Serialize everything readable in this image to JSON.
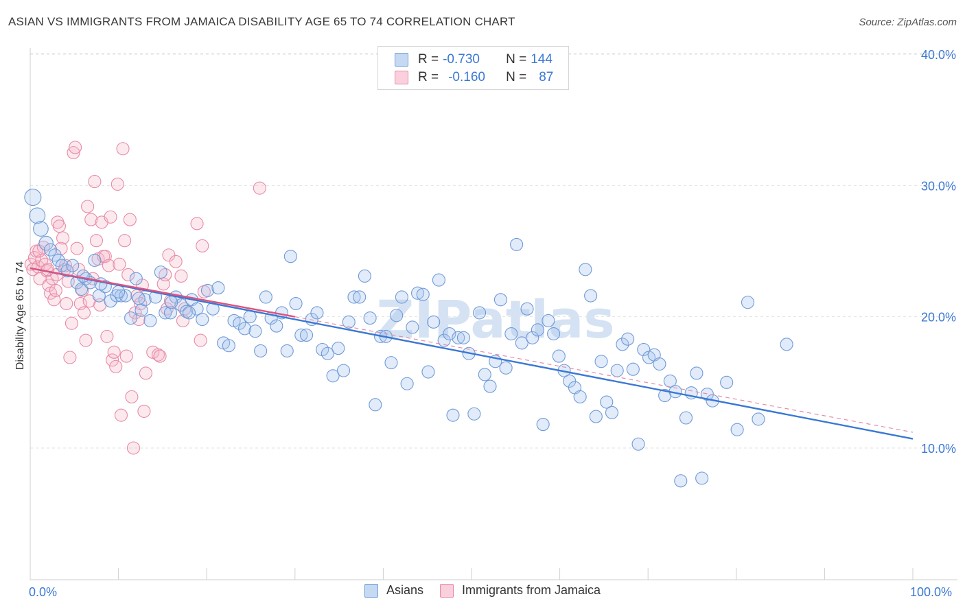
{
  "title": "ASIAN VS IMMIGRANTS FROM JAMAICA DISABILITY AGE 65 TO 74 CORRELATION CHART",
  "source": "Source: ZipAtlas.com",
  "watermark": "ZIPatlas",
  "legend": {
    "rows": [
      {
        "r_label": "R =",
        "r_value": "-0.730",
        "n_label": "N =",
        "n_value": "144",
        "color": "#a9c6ee"
      },
      {
        "r_label": "R =",
        "r_value": "-0.160",
        "n_label": "N =",
        "n_value": "87",
        "color": "#f4b6c8"
      }
    ]
  },
  "bottom_legend": [
    {
      "label": "Asians",
      "color": "#a9c6ee"
    },
    {
      "label": "Immigrants from Jamaica",
      "color": "#f4b6c8"
    }
  ],
  "chart_data": {
    "type": "scatter",
    "ylabel": "Disability Age 65 to 74",
    "xlabel": "",
    "x_tick_labels": [
      "0.0%",
      "100.0%"
    ],
    "y_tick_labels": [
      "10.0%",
      "20.0%",
      "30.0%",
      "40.0%"
    ],
    "y_ticks": [
      10,
      20,
      30,
      40
    ],
    "xlim": [
      0,
      100
    ],
    "ylim": [
      0,
      42
    ],
    "grid": true,
    "colors": {
      "asians": "#3a78d4",
      "jamaica": "#e0517d"
    },
    "series": [
      {
        "name": "Asians",
        "trend": {
          "x": [
            0,
            100
          ],
          "y": [
            23.7,
            10.7
          ]
        },
        "points": [
          [
            0.3,
            29.1
          ],
          [
            0.8,
            27.7
          ],
          [
            1.2,
            26.7
          ],
          [
            1.8,
            25.6
          ],
          [
            2.3,
            25.1
          ],
          [
            2.8,
            24.7
          ],
          [
            3.2,
            24.3
          ],
          [
            3.6,
            23.9
          ],
          [
            4.2,
            23.5
          ],
          [
            4.8,
            23.9
          ],
          [
            5.3,
            22.6
          ],
          [
            5.8,
            22.1
          ],
          [
            6.3,
            22.9
          ],
          [
            6.8,
            22.6
          ],
          [
            7.3,
            24.3
          ],
          [
            7.8,
            21.6
          ],
          [
            8.5,
            22.3
          ],
          [
            9.1,
            21.2
          ],
          [
            9.8,
            21.6
          ],
          [
            10.3,
            21.6
          ],
          [
            10.8,
            21.6
          ],
          [
            11.4,
            19.9
          ],
          [
            12.0,
            22.9
          ],
          [
            12.6,
            20.5
          ],
          [
            13.0,
            21.3
          ],
          [
            13.6,
            19.7
          ],
          [
            14.2,
            21.5
          ],
          [
            14.8,
            23.4
          ],
          [
            15.3,
            20.3
          ],
          [
            15.9,
            20.3
          ],
          [
            16.5,
            21.5
          ],
          [
            17.1,
            20.9
          ],
          [
            17.7,
            20.4
          ],
          [
            18.3,
            21.3
          ],
          [
            18.9,
            20.6
          ],
          [
            19.5,
            19.8
          ],
          [
            20.1,
            22.0
          ],
          [
            20.7,
            20.6
          ],
          [
            21.3,
            22.2
          ],
          [
            21.9,
            18.0
          ],
          [
            22.5,
            17.8
          ],
          [
            23.1,
            19.7
          ],
          [
            23.7,
            19.5
          ],
          [
            24.3,
            19.1
          ],
          [
            24.9,
            20.0
          ],
          [
            25.5,
            18.9
          ],
          [
            26.1,
            17.4
          ],
          [
            26.7,
            21.5
          ],
          [
            27.3,
            19.9
          ],
          [
            27.9,
            19.3
          ],
          [
            28.5,
            20.3
          ],
          [
            29.1,
            17.4
          ],
          [
            29.5,
            24.6
          ],
          [
            30.1,
            21.0
          ],
          [
            30.7,
            18.6
          ],
          [
            31.3,
            18.6
          ],
          [
            31.9,
            19.8
          ],
          [
            32.5,
            20.3
          ],
          [
            33.1,
            17.5
          ],
          [
            33.7,
            17.2
          ],
          [
            34.3,
            15.5
          ],
          [
            34.9,
            17.6
          ],
          [
            35.5,
            15.9
          ],
          [
            36.1,
            19.6
          ],
          [
            36.7,
            21.5
          ],
          [
            37.3,
            21.5
          ],
          [
            37.9,
            23.1
          ],
          [
            38.5,
            19.9
          ],
          [
            39.1,
            13.3
          ],
          [
            39.7,
            18.5
          ],
          [
            40.3,
            18.5
          ],
          [
            40.9,
            16.5
          ],
          [
            41.5,
            20.1
          ],
          [
            42.1,
            21.5
          ],
          [
            42.7,
            14.9
          ],
          [
            43.3,
            19.2
          ],
          [
            43.9,
            21.8
          ],
          [
            44.5,
            21.7
          ],
          [
            45.1,
            15.8
          ],
          [
            45.7,
            19.6
          ],
          [
            46.3,
            22.8
          ],
          [
            46.9,
            18.2
          ],
          [
            47.5,
            18.7
          ],
          [
            47.9,
            12.5
          ],
          [
            48.5,
            18.4
          ],
          [
            49.1,
            18.4
          ],
          [
            49.7,
            17.2
          ],
          [
            50.3,
            12.6
          ],
          [
            50.9,
            20.3
          ],
          [
            51.5,
            15.6
          ],
          [
            52.1,
            14.7
          ],
          [
            52.7,
            16.6
          ],
          [
            53.3,
            21.3
          ],
          [
            53.9,
            16.1
          ],
          [
            54.5,
            18.7
          ],
          [
            55.1,
            25.5
          ],
          [
            55.7,
            18.0
          ],
          [
            56.3,
            20.6
          ],
          [
            56.9,
            18.4
          ],
          [
            57.5,
            19.0
          ],
          [
            58.1,
            11.8
          ],
          [
            58.7,
            19.7
          ],
          [
            59.3,
            18.7
          ],
          [
            59.9,
            17.0
          ],
          [
            60.5,
            15.9
          ],
          [
            61.1,
            15.1
          ],
          [
            61.7,
            14.6
          ],
          [
            62.3,
            13.9
          ],
          [
            62.9,
            23.6
          ],
          [
            63.5,
            21.6
          ],
          [
            64.1,
            12.4
          ],
          [
            64.7,
            16.6
          ],
          [
            65.3,
            13.5
          ],
          [
            65.9,
            12.7
          ],
          [
            66.5,
            15.9
          ],
          [
            67.1,
            17.9
          ],
          [
            67.7,
            18.3
          ],
          [
            68.3,
            16.0
          ],
          [
            68.9,
            10.3
          ],
          [
            69.5,
            17.5
          ],
          [
            70.1,
            16.9
          ],
          [
            70.7,
            17.1
          ],
          [
            71.3,
            16.4
          ],
          [
            71.9,
            14.0
          ],
          [
            72.5,
            15.1
          ],
          [
            73.1,
            14.3
          ],
          [
            73.7,
            7.5
          ],
          [
            74.3,
            12.3
          ],
          [
            74.9,
            14.2
          ],
          [
            75.5,
            15.7
          ],
          [
            76.1,
            7.7
          ],
          [
            76.7,
            14.1
          ],
          [
            77.3,
            13.6
          ],
          [
            78.9,
            15.0
          ],
          [
            80.1,
            11.4
          ],
          [
            81.3,
            21.1
          ],
          [
            82.5,
            12.2
          ],
          [
            85.7,
            17.9
          ],
          [
            6.0,
            23.1
          ],
          [
            8.0,
            22.5
          ],
          [
            10.0,
            21.9
          ],
          [
            12.3,
            21.4
          ],
          [
            16.0,
            21.1
          ],
          [
            18.0,
            20.3
          ]
        ]
      },
      {
        "name": "Immigrants from Jamaica",
        "trend": {
          "x": [
            0,
            30
          ],
          "y": [
            23.7,
            20.0
          ]
        },
        "trend_dashed": {
          "x": [
            30,
            100
          ],
          "y": [
            20.0,
            11.2
          ]
        },
        "points": [
          [
            0.1,
            24.0
          ],
          [
            0.3,
            23.6
          ],
          [
            0.5,
            24.5
          ],
          [
            0.7,
            25.0
          ],
          [
            0.9,
            23.8
          ],
          [
            1.1,
            22.9
          ],
          [
            1.3,
            24.3
          ],
          [
            1.5,
            25.3
          ],
          [
            1.7,
            24.0
          ],
          [
            1.9,
            23.5
          ],
          [
            2.1,
            22.4
          ],
          [
            2.3,
            21.8
          ],
          [
            2.5,
            22.9
          ],
          [
            2.7,
            21.3
          ],
          [
            2.9,
            22.0
          ],
          [
            3.1,
            27.2
          ],
          [
            3.3,
            26.9
          ],
          [
            3.5,
            25.2
          ],
          [
            3.7,
            26.0
          ],
          [
            3.9,
            23.6
          ],
          [
            4.1,
            21.0
          ],
          [
            4.3,
            22.7
          ],
          [
            4.5,
            16.9
          ],
          [
            4.7,
            19.5
          ],
          [
            4.9,
            32.5
          ],
          [
            5.1,
            32.9
          ],
          [
            5.3,
            25.2
          ],
          [
            5.5,
            23.6
          ],
          [
            5.7,
            21.0
          ],
          [
            5.9,
            22.0
          ],
          [
            6.1,
            20.3
          ],
          [
            6.3,
            18.2
          ],
          [
            6.5,
            28.4
          ],
          [
            6.7,
            21.2
          ],
          [
            6.9,
            27.4
          ],
          [
            7.1,
            22.9
          ],
          [
            7.3,
            30.3
          ],
          [
            7.5,
            25.8
          ],
          [
            7.7,
            24.4
          ],
          [
            7.9,
            20.9
          ],
          [
            8.1,
            27.2
          ],
          [
            8.3,
            24.6
          ],
          [
            8.5,
            24.6
          ],
          [
            8.7,
            18.5
          ],
          [
            8.9,
            23.9
          ],
          [
            9.1,
            27.6
          ],
          [
            9.3,
            16.7
          ],
          [
            9.5,
            17.3
          ],
          [
            9.7,
            16.2
          ],
          [
            9.9,
            30.1
          ],
          [
            10.1,
            24.0
          ],
          [
            10.3,
            12.5
          ],
          [
            10.5,
            32.8
          ],
          [
            10.7,
            25.8
          ],
          [
            10.9,
            17.0
          ],
          [
            11.1,
            23.2
          ],
          [
            11.3,
            27.4
          ],
          [
            11.5,
            13.9
          ],
          [
            11.7,
            10.0
          ],
          [
            11.9,
            20.3
          ],
          [
            12.1,
            21.6
          ],
          [
            12.3,
            19.8
          ],
          [
            12.5,
            21.0
          ],
          [
            12.7,
            22.4
          ],
          [
            12.9,
            12.8
          ],
          [
            13.1,
            15.7
          ],
          [
            13.9,
            17.3
          ],
          [
            14.5,
            17.1
          ],
          [
            14.7,
            17.0
          ],
          [
            15.1,
            22.5
          ],
          [
            15.3,
            23.2
          ],
          [
            15.5,
            20.6
          ],
          [
            15.7,
            24.7
          ],
          [
            15.9,
            21.2
          ],
          [
            16.5,
            24.2
          ],
          [
            17.1,
            23.1
          ],
          [
            17.3,
            19.7
          ],
          [
            17.5,
            20.6
          ],
          [
            18.9,
            27.1
          ],
          [
            19.3,
            18.2
          ],
          [
            19.5,
            25.4
          ],
          [
            19.7,
            21.9
          ],
          [
            26.0,
            29.8
          ],
          [
            1.0,
            25.0
          ],
          [
            2.0,
            23.6
          ],
          [
            3.0,
            23.2
          ],
          [
            4.0,
            23.9
          ]
        ]
      }
    ]
  }
}
